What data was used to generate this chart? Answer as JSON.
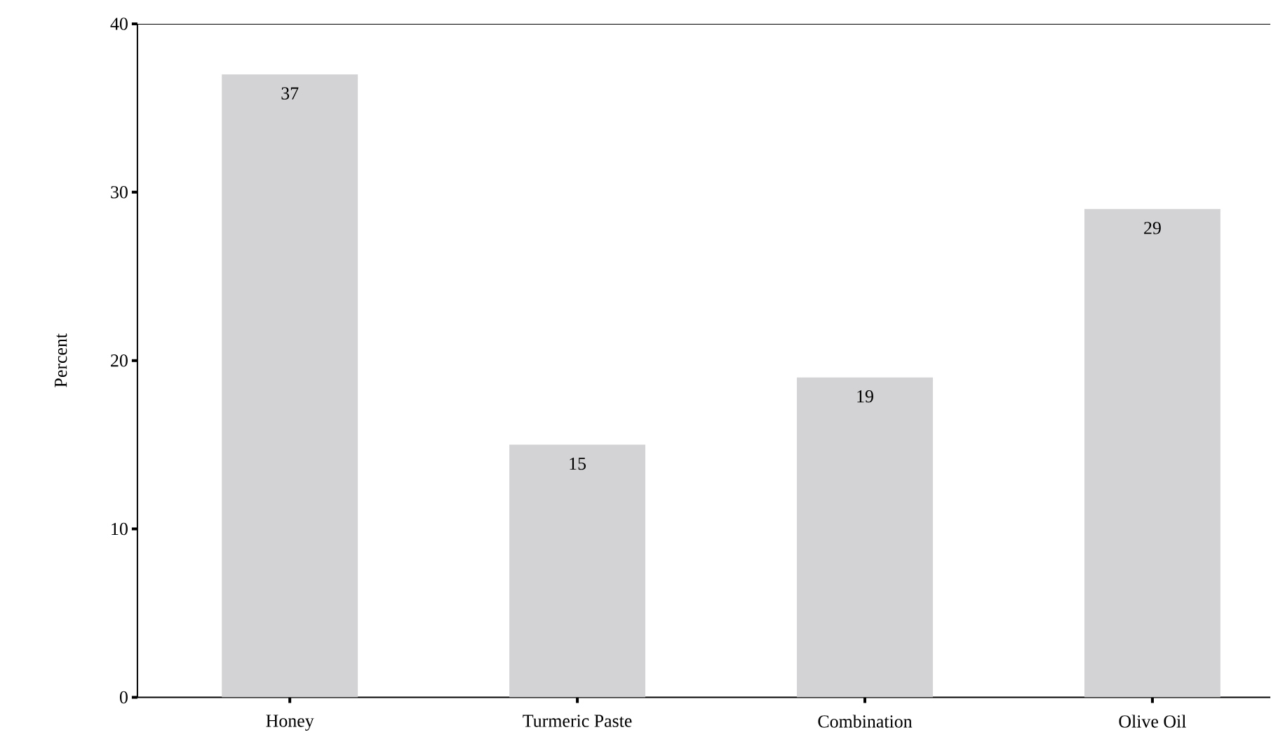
{
  "chart_data": {
    "type": "bar",
    "ylabel": "Percent",
    "categories": [
      "Honey",
      "Turmeric Paste",
      "Combination",
      "Olive Oil"
    ],
    "values": [
      37,
      15,
      19,
      29
    ],
    "color": "#d3d3d5",
    "ylim": [
      0,
      40
    ],
    "yticks": [
      0,
      10,
      20,
      30,
      40
    ],
    "data_labels": true
  }
}
